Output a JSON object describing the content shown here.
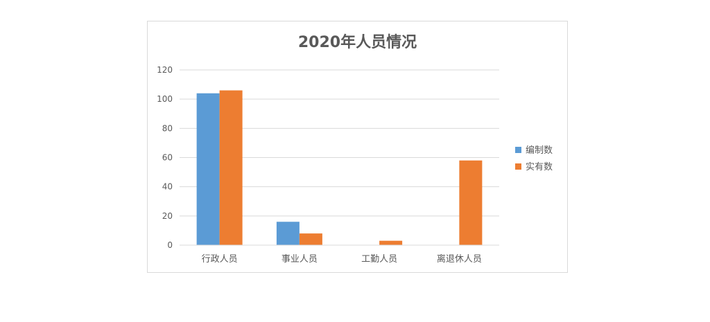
{
  "chart_data": {
    "type": "bar",
    "title": "2020年人员情况",
    "categories": [
      "行政人员",
      "事业人员",
      "工勤人员",
      "离退休人员"
    ],
    "series": [
      {
        "name": "编制数",
        "color": "#5b9bd5",
        "values": [
          104,
          16,
          0,
          0
        ]
      },
      {
        "name": "实有数",
        "color": "#ed7d31",
        "values": [
          106,
          8,
          3,
          58
        ]
      }
    ],
    "ylim": [
      0,
      120
    ],
    "yticks": [
      0,
      20,
      40,
      60,
      80,
      100,
      120
    ],
    "grid": true,
    "legend_position": "right",
    "colors": {
      "gridline": "#d9d9d9",
      "axis": "#d9d9d9",
      "text": "#595959"
    }
  }
}
